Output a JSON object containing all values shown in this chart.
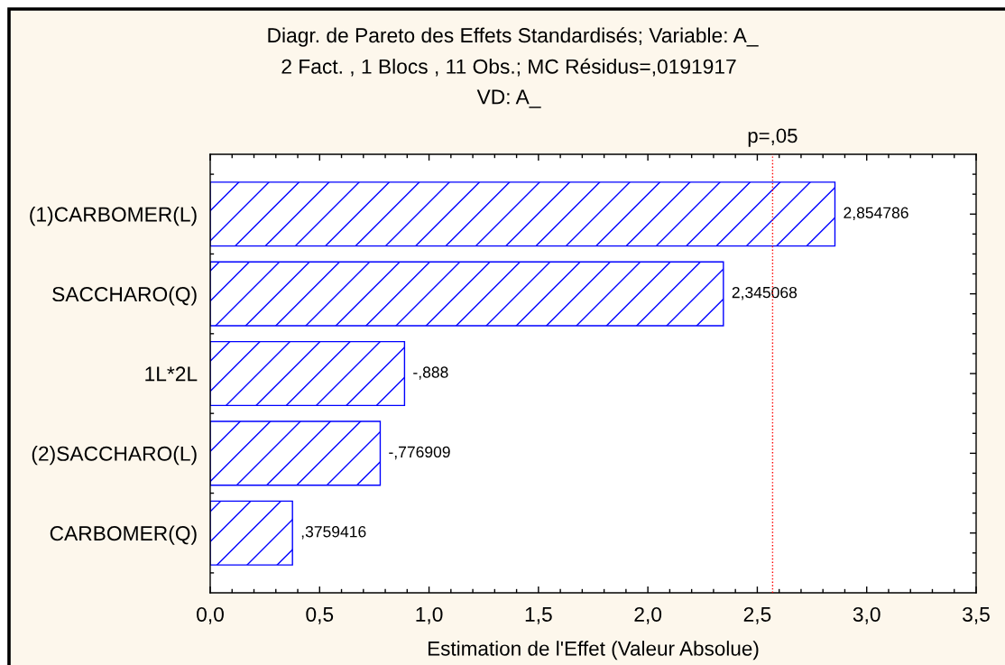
{
  "chart_data": {
    "type": "bar",
    "orientation": "horizontal",
    "title": "Diagr. de Pareto des Effets Standardisés; Variable: A_",
    "subtitle": "2 Fact. , 1 Blocs , 11 Obs.; MC Résidus=,0191917\nVD: A_",
    "xlabel": "Estimation de l'Effet (Valeur Absolue)",
    "categories": [
      "(1)CARBOMER(L)",
      "SACCHARO(Q)",
      "1L*2L",
      "(2)SACCHARO(L)",
      "CARBOMER(Q)"
    ],
    "values": [
      2.854786,
      2.345068,
      0.888,
      0.776909,
      0.3759416
    ],
    "value_labels": [
      "2,854786",
      "2,345068",
      null,
      null,
      null
    ],
    "annotations": [
      {
        "text": "-,888",
        "x": 0.888,
        "y": "1L*2L"
      },
      {
        "text": "-,776909",
        "x": 0.776909,
        "y": "(2)SACCHARO(L)"
      },
      {
        "text": ",3759416",
        "x": 0.3759416,
        "y": "CARBOMER(Q)"
      }
    ],
    "color": "#0000ff",
    "xlim": [
      0,
      3.5
    ],
    "xticks": [
      {
        "value": 0,
        "label": "0,0"
      },
      {
        "value": 0.1,
        "label": null
      },
      {
        "value": 0.2,
        "label": null
      },
      {
        "value": 0.3,
        "label": null
      },
      {
        "value": 0.4,
        "label": null
      },
      {
        "value": 0.5,
        "label": "0,5"
      },
      {
        "value": 0.6,
        "label": null
      },
      {
        "value": 0.7,
        "label": null
      },
      {
        "value": 0.8,
        "label": null
      },
      {
        "value": 0.9,
        "label": null
      },
      {
        "value": 1.0,
        "label": "1,0"
      },
      {
        "value": 1.1,
        "label": null
      },
      {
        "value": 1.2,
        "label": null
      },
      {
        "value": 1.3,
        "label": null
      },
      {
        "value": 1.4,
        "label": null
      },
      {
        "value": 1.5,
        "label": "1,5"
      },
      {
        "value": 1.6,
        "label": null
      },
      {
        "value": 1.7,
        "label": null
      },
      {
        "value": 1.8,
        "label": null
      },
      {
        "value": 1.9,
        "label": null
      },
      {
        "value": 2.0,
        "label": "2,0"
      },
      {
        "value": 2.1,
        "label": null
      },
      {
        "value": 2.2,
        "label": null
      },
      {
        "value": 2.3,
        "label": null
      },
      {
        "value": 2.4,
        "label": null
      },
      {
        "value": 2.5,
        "label": "2,5"
      },
      {
        "value": 2.6,
        "label": null
      },
      {
        "value": 2.7,
        "label": null
      },
      {
        "value": 2.8,
        "label": null
      },
      {
        "value": 2.9,
        "label": null
      },
      {
        "value": 3.0,
        "label": "3,0"
      },
      {
        "value": 3.1,
        "label": null
      },
      {
        "value": 3.2,
        "label": null
      },
      {
        "value": 3.3,
        "label": null
      },
      {
        "value": 3.4,
        "label": null
      },
      {
        "value": 3.5,
        "label": "3,5"
      }
    ],
    "ref_lines": [
      {
        "axis": "x",
        "value": 2.57,
        "label": "p=,05",
        "color": "#ff0000",
        "line_style": "dotted"
      }
    ]
  }
}
